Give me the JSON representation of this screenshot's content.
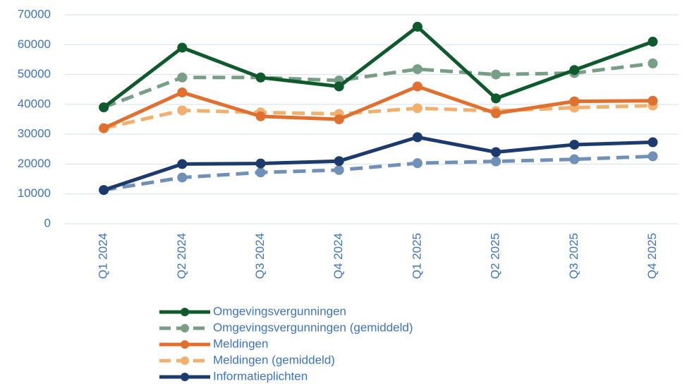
{
  "chart_data": {
    "type": "line",
    "categories": [
      "Q1 2024",
      "Q2 2024",
      "Q3 2024",
      "Q4 2024",
      "Q1 2025",
      "Q2 2025",
      "Q3 2025",
      "Q4 2025"
    ],
    "series": [
      {
        "name": "Omgevingsvergunningen",
        "color": "#0f5a2c",
        "dashed": false,
        "values": [
          39000,
          59000,
          49000,
          46000,
          66000,
          42000,
          51500,
          61000
        ]
      },
      {
        "name": "Omgevingsvergunningen (gemiddeld)",
        "color": "#789e86",
        "dashed": true,
        "values": [
          39000,
          49000,
          49000,
          48000,
          51800,
          50000,
          50500,
          53700
        ]
      },
      {
        "name": "Meldingen",
        "color": "#e07030",
        "dashed": false,
        "values": [
          32000,
          44000,
          36000,
          35000,
          46000,
          37000,
          41000,
          41200
        ]
      },
      {
        "name": "Meldingen (gemiddeld)",
        "color": "#f0b06e",
        "dashed": true,
        "values": [
          32000,
          38000,
          37300,
          36800,
          38700,
          37800,
          38900,
          39600
        ]
      },
      {
        "name": "Informatieplichten",
        "color": "#1d3a6c",
        "dashed": false,
        "values": [
          11300,
          20000,
          20200,
          21000,
          29000,
          24000,
          26500,
          27300
        ]
      },
      {
        "color": "#7190b8",
        "dashed": true,
        "values": [
          11300,
          15500,
          17200,
          18000,
          20300,
          20900,
          21600,
          22600
        ]
      }
    ],
    "ylim": [
      0,
      70000
    ],
    "yticks": [
      0,
      10000,
      20000,
      30000,
      40000,
      50000,
      60000,
      70000
    ],
    "grid": true
  }
}
